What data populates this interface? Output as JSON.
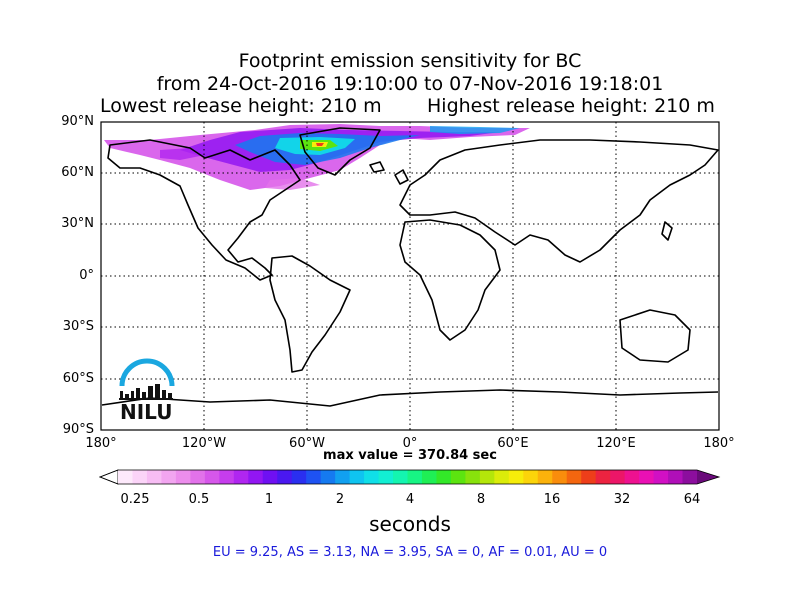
{
  "title": {
    "line1": "Footprint emission sensitivity for BC",
    "line2": "from 24-Oct-2016 19:10:00 to 07-Nov-2016 19:18:01",
    "lowest": "Lowest release height: 210 m",
    "highest": "Highest release height: 210 m"
  },
  "axes": {
    "lat_ticks": [
      "90°N",
      "60°N",
      "30°N",
      "0°",
      "30°S",
      "60°S",
      "90°S"
    ],
    "lon_ticks": [
      "180°",
      "120°W",
      "60°W",
      "0°",
      "60°E",
      "120°E",
      "180°"
    ]
  },
  "max_value": "max value = 370.84 sec",
  "colorbar": {
    "tick_labels": [
      "0.25",
      "0.5",
      "1",
      "2",
      "4",
      "8",
      "16",
      "32",
      "64"
    ],
    "unit": "seconds",
    "colors": [
      "#fde9fb",
      "#fbd4f8",
      "#f7bdf4",
      "#f2a5f0",
      "#ec8dec",
      "#e272ea",
      "#d657ea",
      "#c63ded",
      "#b026f0",
      "#9216f2",
      "#6f10f2",
      "#4a18f0",
      "#2a2ff0",
      "#1e52f2",
      "#157af0",
      "#11a0f0",
      "#0fc4f0",
      "#10dfe8",
      "#12efd3",
      "#14f5b0",
      "#17f584",
      "#1fef55",
      "#33e828",
      "#5ce410",
      "#88e20c",
      "#b4e60a",
      "#dbec0a",
      "#f6ed0a",
      "#fbd40a",
      "#fbb20b",
      "#f98d0c",
      "#f4660f",
      "#ee3e1a",
      "#ec2340",
      "#ec1668",
      "#ee1190",
      "#ea10b4",
      "#d110c4",
      "#b00fb8",
      "#8c0e9e"
    ]
  },
  "regions_text": "EU = 9.25,  AS = 3.13,  NA = 3.95,  SA = 0,  AF = 0.01,  AU = 0",
  "logo": {
    "text": "NILU",
    "arc_color": "#1aa7e0"
  }
}
